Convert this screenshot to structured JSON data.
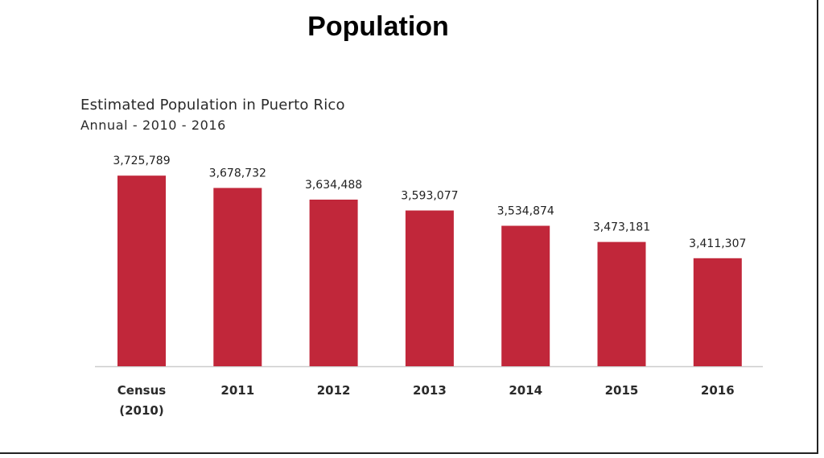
{
  "page": {
    "title": "Population"
  },
  "chart_data": {
    "type": "bar",
    "title": "Estimated Population in Puerto Rico",
    "subtitle": "Annual - 2010 - 2016",
    "categories": [
      [
        "Census",
        "(2010)"
      ],
      [
        "2011"
      ],
      [
        "2012"
      ],
      [
        "2013"
      ],
      [
        "2014"
      ],
      [
        "2015"
      ],
      [
        "2016"
      ]
    ],
    "values": [
      3725789,
      3678732,
      3634488,
      3593077,
      3534874,
      3473181,
      3411307
    ],
    "value_labels": [
      "3,725,789",
      "3,678,732",
      "3,634,488",
      "3,593,077",
      "3,534,874",
      "3,473,181",
      "3,411,307"
    ],
    "ylim": [
      3000000,
      3760000
    ],
    "bar_color": "#c1273a",
    "axis_color": "#cccccc",
    "grid": false,
    "legend": "none"
  }
}
